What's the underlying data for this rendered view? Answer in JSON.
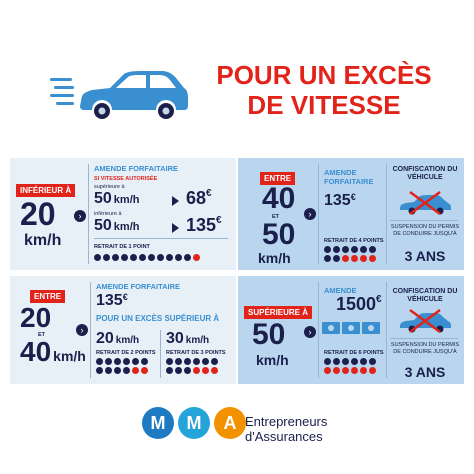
{
  "title": {
    "line1": "POUR UN EXCÈS",
    "line2": "DE VITESSE"
  },
  "q1": {
    "tag": "INFÉRIEUR À",
    "speed": "20",
    "unit": "km/h",
    "fine_label_1": "AMENDE FORFAITAIRE",
    "limit_label": "SI VITESSE AUTORISÉE",
    "sup_label": "supérieure à",
    "sup_speed": "50",
    "sup_unit": "km/h",
    "sup_amount": "68",
    "inf_label": "inférieure à",
    "inf_speed": "50",
    "inf_unit": "km/h",
    "inf_amount": "135",
    "currency": "€",
    "points_label": "RETRAIT DE 1 POINT",
    "points_removed": 1
  },
  "q2": {
    "tag": "ENTRE",
    "speed_a": "40",
    "et": "ET",
    "speed_b": "50",
    "unit": "km/h",
    "fine_label": "AMENDE FORFAITAIRE",
    "amount": "135",
    "currency": "€",
    "points_label": "RETRAIT DE 4 POINTS",
    "points_removed": 4,
    "confisc_label": "CONFISCATION DU VÉHICULE",
    "suspension_label": "SUSPENSION DU PERMIS DE CONDUIRE JUSQU'À",
    "suspension_value": "3 ANS"
  },
  "q3": {
    "tag": "ENTRE",
    "speed_a": "20",
    "et": "ET",
    "speed_b": "40",
    "unit": "km/h",
    "fine_label": "AMENDE FORFAITAIRE",
    "amount": "135",
    "currency": "€",
    "excess_label": "POUR UN EXCÈS SUPÉRIEUR À",
    "s1": "20",
    "s1_unit": "km/h",
    "s1_points": "RETRAIT DE 2 POINTS",
    "s1_removed": 2,
    "s2": "30",
    "s2_unit": "km/h",
    "s2_points": "RETRAIT DE 3 POINTS",
    "s2_removed": 3
  },
  "q4": {
    "tag": "SUPÉRIEURE À",
    "speed": "50",
    "unit": "km/h",
    "fine_label": "AMENDE",
    "amount": "1500",
    "currency": "€",
    "points_label": "RETRAIT DE 6 POINTS",
    "points_removed": 6,
    "confisc_label": "CONFISCATION DU VÉHICULE",
    "suspension_label": "SUSPENSION DU PERMIS DE CONDUIRE JUSQU'À",
    "suspension_value": "3 ANS"
  },
  "footer": {
    "logo": [
      "M",
      "M",
      "A"
    ],
    "brand_line1": "Entrepreneurs",
    "brand_line2": "d'Assurances"
  },
  "colors": {
    "red": "#e2231a",
    "navy": "#1b1f4b",
    "blue": "#3a8fd1",
    "m1": "#1f7bc1",
    "m2": "#25a4d9",
    "a": "#f39200"
  }
}
